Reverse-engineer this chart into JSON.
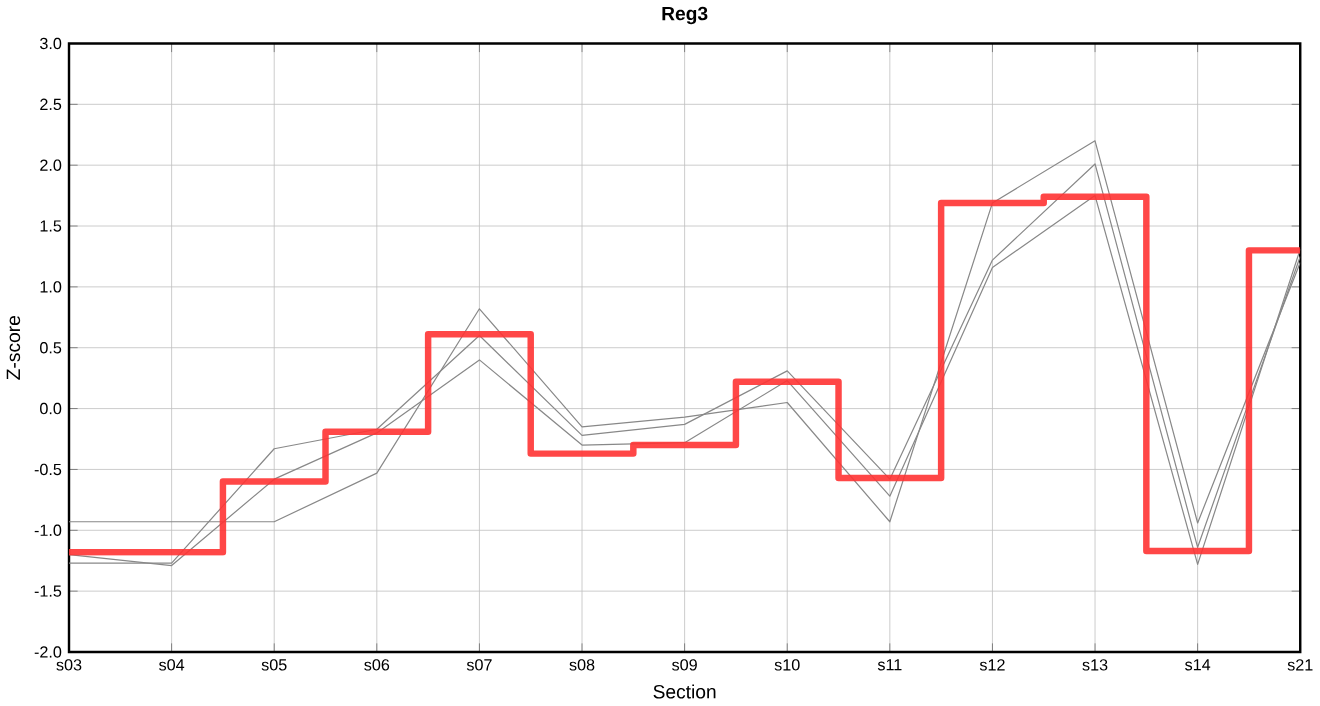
{
  "chart_data": {
    "type": "line",
    "title": "Reg3",
    "xlabel": "Section",
    "ylabel": "Z-score",
    "categories": [
      "s03",
      "s04",
      "s05",
      "s06",
      "s07",
      "s08",
      "s09",
      "s10",
      "s11",
      "s12",
      "s13",
      "s14",
      "s21"
    ],
    "ylim": [
      -2,
      3
    ],
    "yticks": [
      {
        "value": -2,
        "label": "-2.0"
      },
      {
        "value": -1.5,
        "label": "-1.5"
      },
      {
        "value": -1,
        "label": "-1.0"
      },
      {
        "value": -0.5,
        "label": "-0.5"
      },
      {
        "value": 0,
        "label": "0.0"
      },
      {
        "value": 0.5,
        "label": "0.5"
      },
      {
        "value": 1,
        "label": "1.0"
      },
      {
        "value": 1.5,
        "label": "1.5"
      },
      {
        "value": 2,
        "label": "2.0"
      },
      {
        "value": 2.5,
        "label": "2.5"
      },
      {
        "value": 3,
        "label": "3.0"
      }
    ],
    "grid": true,
    "marker": "none",
    "series": [
      {
        "color": "#888888",
        "values": [
          -0.93,
          -0.93,
          -0.93,
          -0.53,
          0.82,
          -0.15,
          -0.07,
          0.05,
          -0.93,
          1.69,
          2.2,
          -0.94,
          1.2
        ]
      },
      {
        "color": "#888888",
        "values": [
          -1.27,
          -1.27,
          -0.33,
          -0.17,
          0.6,
          -0.22,
          -0.13,
          0.31,
          -0.58,
          1.22,
          2.01,
          -1.14,
          1.25
        ]
      },
      {
        "color": "#888888",
        "values": [
          -1.2,
          -1.29,
          -0.58,
          -0.2,
          0.4,
          -0.3,
          -0.28,
          0.23,
          -0.72,
          1.16,
          1.75,
          -1.28,
          1.31
        ]
      },
      {
        "type": "step",
        "color": "#ff3333",
        "values": [
          -1.18,
          -1.18,
          -0.6,
          -0.19,
          0.61,
          -0.37,
          -0.3,
          0.22,
          -0.57,
          1.69,
          1.74,
          -1.17,
          1.3
        ]
      }
    ]
  }
}
